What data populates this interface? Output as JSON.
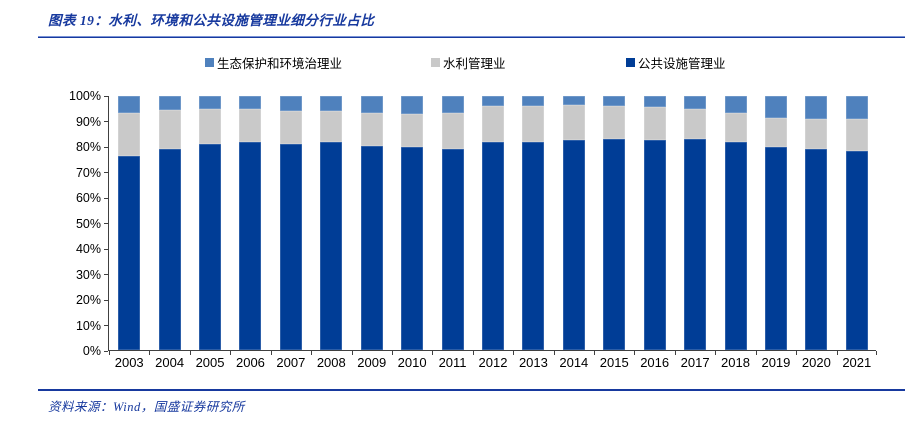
{
  "title": "图表 19：水利、环境和公共设施管理业细分行业占比",
  "source": "资料来源：Wind，国盛证券研究所",
  "colors": {
    "accent_navy": "#17399E",
    "bar_dark_blue": "#003D96",
    "bar_gray": "#C9C9C9",
    "bar_medium_blue": "#4F81BD",
    "axis": "#404040"
  },
  "legend": [
    {
      "label": "生态保护和环境治理业",
      "color": "#4F81BD"
    },
    {
      "label": "水利管理业",
      "color": "#C9C9C9"
    },
    {
      "label": "公共设施管理业",
      "color": "#003D96"
    }
  ],
  "chart_data": {
    "type": "bar",
    "stacked": true,
    "percent": true,
    "title": "水利、环境和公共设施管理业细分行业占比",
    "xlabel": "",
    "ylabel": "",
    "ylim": [
      0,
      100
    ],
    "grid": false,
    "legend_position": "top",
    "y_ticks": [
      "0%",
      "10%",
      "20%",
      "30%",
      "40%",
      "50%",
      "60%",
      "70%",
      "80%",
      "90%",
      "100%"
    ],
    "categories": [
      "2003",
      "2004",
      "2005",
      "2006",
      "2007",
      "2008",
      "2009",
      "2010",
      "2011",
      "2012",
      "2013",
      "2014",
      "2015",
      "2016",
      "2017",
      "2018",
      "2019",
      "2020",
      "2021"
    ],
    "series": [
      {
        "name": "公共设施管理业",
        "color": "#003D96",
        "values": [
          76.5,
          79,
          81,
          82,
          81,
          82,
          80.5,
          80,
          79,
          82,
          82,
          82.5,
          83,
          82.5,
          83,
          82,
          80,
          79,
          78.5
        ]
      },
      {
        "name": "水利管理业",
        "color": "#C9C9C9",
        "values": [
          17,
          15.5,
          14,
          13,
          13,
          12,
          13,
          13,
          14.5,
          14,
          14,
          14,
          13,
          13,
          12,
          11.5,
          11.5,
          12,
          12.5
        ]
      },
      {
        "name": "生态保护和环境治理业",
        "color": "#4F81BD",
        "values": [
          6.5,
          5.5,
          5,
          5,
          6,
          6,
          6.5,
          7,
          6.5,
          4,
          4,
          3.5,
          4,
          4.5,
          5,
          6.5,
          8.5,
          9,
          9
        ]
      }
    ]
  }
}
